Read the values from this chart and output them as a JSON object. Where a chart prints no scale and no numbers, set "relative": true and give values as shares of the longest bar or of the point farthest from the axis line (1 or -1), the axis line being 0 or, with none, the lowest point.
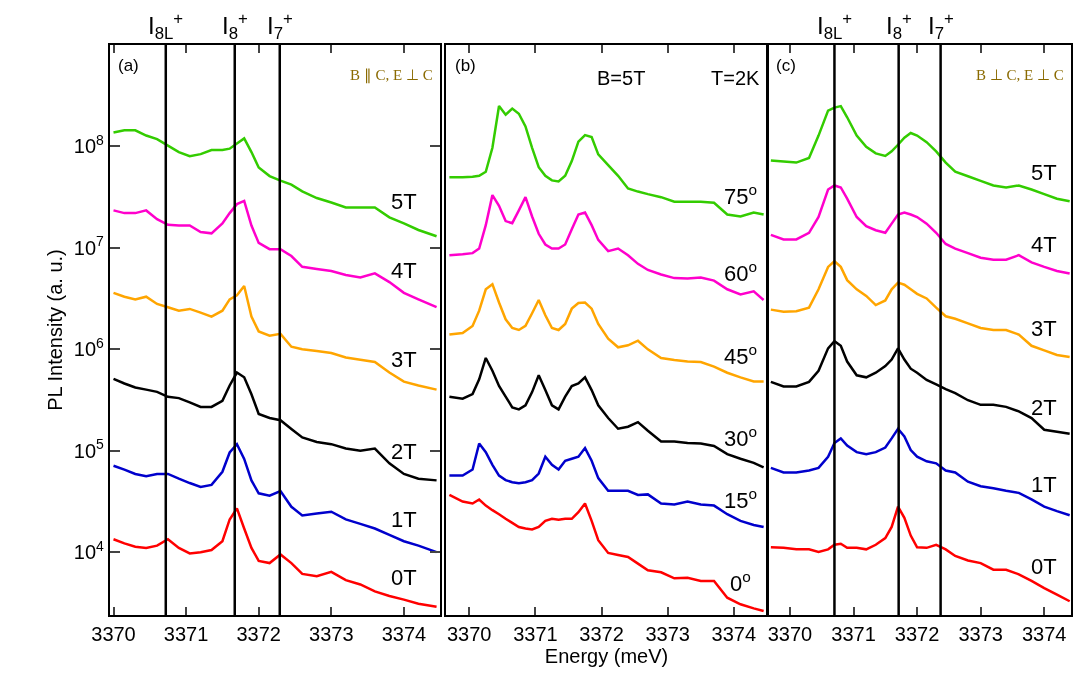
{
  "chart_data": [
    {
      "type": "line",
      "ylabel": "PL Intensity (a. u.)",
      "log": true,
      "xlim": [
        3369.95,
        3374.5
      ],
      "xticks": [
        3370,
        3371,
        3372,
        3373,
        3374
      ],
      "ylim": [
        2400,
        1000000000.0
      ],
      "yticks": [
        {
          "value": 10000,
          "label": "10$^{4}$"
        },
        {
          "value": 100000,
          "label": "10$^{5}$"
        },
        {
          "value": 1000000,
          "label": "10$^{6}$"
        },
        {
          "value": 10000000,
          "label": "10$^{7}$"
        },
        {
          "value": 100000000,
          "label": "10$^{8}$"
        }
      ],
      "x": [
        3370.0,
        3370.15,
        3370.3,
        3370.45,
        3370.6,
        3370.75,
        3370.9,
        3371.05,
        3371.2,
        3371.35,
        3371.5,
        3371.6,
        3371.7,
        3371.8,
        3371.9,
        3372.0,
        3372.15,
        3372.3,
        3372.45,
        3372.6,
        3372.8,
        3373.0,
        3373.2,
        3373.4,
        3373.6,
        3373.8,
        3374.0,
        3374.2,
        3374.45
      ],
      "series": [
        {
          "name": "5T",
          "color": "#33cc00",
          "values": [
            137000000.0,
            144000000.0,
            144000000.0,
            128000000.0,
            118000000.0,
            102000000.0,
            88000000.0,
            80000000.0,
            84000000.0,
            92000000.0,
            92000000.0,
            95000000.0,
            107000000.0,
            120000000.0,
            88000000.0,
            62000000.0,
            51000000.0,
            46000000.0,
            42000000.0,
            36000000.0,
            31000000.0,
            28000000.0,
            25000000.0,
            25000000.0,
            25000000.0,
            20000000.0,
            17400000.0,
            15000000.0,
            13000000.0
          ]
        },
        {
          "name": "4T",
          "color": "#ff00cc",
          "values": [
            23400000.0,
            22000000.0,
            22000000.0,
            23400000.0,
            19200000.0,
            16900000.0,
            16600000.0,
            16600000.0,
            14300000.0,
            13900000.0,
            17400000.0,
            22000000.0,
            27000000.0,
            29000000.0,
            16600000.0,
            11200000.0,
            9700000.0,
            9700000.0,
            8300000.0,
            6500000.0,
            6200000.0,
            5900000.0,
            5400000.0,
            5100000.0,
            5600000.0,
            4600000.0,
            3600000.0,
            3100000.0,
            2600000.0
          ]
        },
        {
          "name": "3T",
          "color": "#ffa500",
          "values": [
            3600000.0,
            3300000.0,
            3100000.0,
            3300000.0,
            2800000.0,
            2600000.0,
            2400000.0,
            2500000.0,
            2300000.0,
            2100000.0,
            2400000.0,
            3100000.0,
            3400000.0,
            4200000.0,
            2100000.0,
            1500000.0,
            1360000.0,
            1420000.0,
            1060000.0,
            1000000.0,
            960000.0,
            920000.0,
            830000.0,
            790000.0,
            750000.0,
            590000.0,
            480000.0,
            440000.0,
            400000.0
          ]
        },
        {
          "name": "2T",
          "color": "#000000",
          "values": [
            510000.0,
            460000.0,
            420000.0,
            400000.0,
            380000.0,
            340000.0,
            330000.0,
            300000.0,
            270000.0,
            270000.0,
            310000.0,
            440000.0,
            590000.0,
            530000.0,
            360000.0,
            230000.0,
            210000.0,
            200000.0,
            164000.0,
            135000.0,
            122000.0,
            116000.0,
            105000.0,
            100000.0,
            105000.0,
            75000.0,
            59000.0,
            53000.0,
            51000.0
          ]
        },
        {
          "name": "1T",
          "color": "#0000cc",
          "values": [
            71000.0,
            65000.0,
            59000.0,
            56000.0,
            59000.0,
            59000.0,
            53000.0,
            48000.0,
            44000.0,
            46000.0,
            62000.0,
            96000.0,
            116000.0,
            83000.0,
            51000.0,
            38000.0,
            36000.0,
            40000.0,
            28000.0,
            23000.0,
            24000.0,
            25000.0,
            21000.0,
            19000.0,
            17100.0,
            14800.0,
            12800.0,
            11600.0,
            10000.0
          ]
        },
        {
          "name": "0T",
          "color": "#ff0000",
          "values": [
            13400.0,
            12200.0,
            11300.0,
            11000.0,
            11600.0,
            13400.0,
            11000.0,
            9700.0,
            10000.0,
            10500.0,
            12800.0,
            21000.0,
            27000.0,
            17100.0,
            11000.0,
            8200.0,
            7800.0,
            9500.0,
            7800.0,
            6100.0,
            5800.0,
            6400.0,
            5300.0,
            4800.0,
            4100.0,
            3700.0,
            3400.0,
            3100.0,
            2900.0
          ]
        }
      ],
      "ref_lines": [
        {
          "axis": "x",
          "value": 3370.72,
          "label": "I$_{8L}$$^{+}$"
        },
        {
          "axis": "x",
          "value": 3371.67,
          "label": "I$_{8}$$^{+}$"
        },
        {
          "axis": "x",
          "value": 3372.29,
          "label": "I$_{7}$$^{+}$"
        }
      ],
      "annotations": [
        "(a)",
        "B ∥ C, E ⊥ C"
      ]
    },
    {
      "type": "line",
      "relative": true,
      "xlabel": "Energy (meV)",
      "xlim": [
        3369.65,
        3374.5
      ],
      "xticks": [
        3370,
        3371,
        3372,
        3373,
        3374
      ],
      "x": [
        3369.7,
        3369.9,
        3370.05,
        3370.15,
        3370.25,
        3370.35,
        3370.45,
        3370.55,
        3370.65,
        3370.75,
        3370.85,
        3370.95,
        3371.05,
        3371.15,
        3371.25,
        3371.35,
        3371.45,
        3371.55,
        3371.65,
        3371.75,
        3371.85,
        3371.95,
        3372.1,
        3372.25,
        3372.4,
        3372.55,
        3372.7,
        3372.9,
        3373.1,
        3373.3,
        3373.5,
        3373.7,
        3373.9,
        3374.1,
        3374.3,
        3374.45
      ],
      "series": [
        {
          "name": "75$^{o}$",
          "color": "#33cc00",
          "values": [
            0.86,
            0.86,
            0.861,
            0.863,
            0.871,
            0.918,
            1.0,
            0.983,
            0.995,
            0.985,
            0.96,
            0.918,
            0.88,
            0.863,
            0.854,
            0.852,
            0.863,
            0.892,
            0.93,
            0.943,
            0.939,
            0.905,
            0.884,
            0.863,
            0.838,
            0.832,
            0.827,
            0.821,
            0.812,
            0.812,
            0.812,
            0.81,
            0.787,
            0.783,
            0.791,
            0.787
          ]
        },
        {
          "name": "60$^{o}$",
          "color": "#ff00cc",
          "values": [
            0.707,
            0.709,
            0.711,
            0.72,
            0.766,
            0.825,
            0.804,
            0.774,
            0.77,
            0.795,
            0.821,
            0.783,
            0.749,
            0.728,
            0.72,
            0.72,
            0.728,
            0.758,
            0.787,
            0.791,
            0.766,
            0.737,
            0.715,
            0.72,
            0.707,
            0.69,
            0.678,
            0.669,
            0.662,
            0.661,
            0.663,
            0.657,
            0.64,
            0.63,
            0.636,
            0.619
          ]
        },
        {
          "name": "45$^{o}$",
          "color": "#ffa500",
          "values": [
            0.551,
            0.554,
            0.568,
            0.598,
            0.64,
            0.65,
            0.614,
            0.581,
            0.564,
            0.56,
            0.568,
            0.593,
            0.619,
            0.589,
            0.564,
            0.56,
            0.572,
            0.602,
            0.613,
            0.614,
            0.602,
            0.572,
            0.543,
            0.526,
            0.53,
            0.539,
            0.522,
            0.505,
            0.501,
            0.498,
            0.497,
            0.488,
            0.476,
            0.467,
            0.459,
            0.459
          ]
        },
        {
          "name": "30$^{o}$",
          "color": "#000000",
          "values": [
            0.429,
            0.425,
            0.434,
            0.463,
            0.505,
            0.48,
            0.45,
            0.429,
            0.408,
            0.404,
            0.412,
            0.438,
            0.471,
            0.442,
            0.412,
            0.404,
            0.429,
            0.45,
            0.455,
            0.467,
            0.442,
            0.412,
            0.387,
            0.366,
            0.37,
            0.379,
            0.362,
            0.341,
            0.341,
            0.338,
            0.337,
            0.332,
            0.316,
            0.307,
            0.299,
            0.29
          ]
        },
        {
          "name": "15$^{o}$",
          "color": "#0000cc",
          "values": [
            0.274,
            0.274,
            0.286,
            0.337,
            0.32,
            0.295,
            0.274,
            0.265,
            0.261,
            0.259,
            0.261,
            0.265,
            0.278,
            0.311,
            0.295,
            0.286,
            0.303,
            0.307,
            0.311,
            0.328,
            0.303,
            0.269,
            0.244,
            0.244,
            0.244,
            0.236,
            0.237,
            0.219,
            0.217,
            0.223,
            0.217,
            0.215,
            0.198,
            0.185,
            0.177,
            0.173
          ]
        },
        {
          "name": "0$^{o}$",
          "color": "#ff0000",
          "values": [
            0.236,
            0.223,
            0.219,
            0.227,
            0.215,
            0.206,
            0.198,
            0.189,
            0.181,
            0.173,
            0.17,
            0.168,
            0.173,
            0.185,
            0.189,
            0.187,
            0.189,
            0.189,
            0.202,
            0.219,
            0.185,
            0.147,
            0.122,
            0.118,
            0.114,
            0.101,
            0.088,
            0.084,
            0.072,
            0.073,
            0.067,
            0.067,
            0.034,
            0.021,
            0.013,
            0.008
          ]
        }
      ],
      "annotations": [
        "(b)",
        "B=5T",
        "T=2K"
      ]
    },
    {
      "type": "line",
      "relative": true,
      "xlim": [
        3369.65,
        3374.42
      ],
      "xticks": [
        3370,
        3371,
        3372,
        3373,
        3374
      ],
      "x": [
        3369.7,
        3369.9,
        3370.1,
        3370.3,
        3370.45,
        3370.6,
        3370.7,
        3370.8,
        3370.9,
        3371.05,
        3371.2,
        3371.35,
        3371.5,
        3371.6,
        3371.7,
        3371.8,
        3371.9,
        3372.0,
        3372.15,
        3372.3,
        3372.45,
        3372.6,
        3372.8,
        3373.0,
        3373.2,
        3373.4,
        3373.6,
        3373.8,
        3374.0,
        3374.2,
        3374.4
      ],
      "series": [
        {
          "name": "5T",
          "color": "#33cc00",
          "values": [
            0.893,
            0.891,
            0.889,
            0.898,
            0.942,
            0.991,
            0.997,
            1.0,
            0.978,
            0.942,
            0.92,
            0.907,
            0.902,
            0.911,
            0.924,
            0.938,
            0.947,
            0.942,
            0.929,
            0.911,
            0.889,
            0.871,
            0.862,
            0.853,
            0.844,
            0.84,
            0.844,
            0.836,
            0.827,
            0.818,
            0.813
          ]
        },
        {
          "name": "4T",
          "color": "#ff00cc",
          "values": [
            0.747,
            0.738,
            0.738,
            0.751,
            0.782,
            0.836,
            0.844,
            0.84,
            0.818,
            0.782,
            0.764,
            0.756,
            0.751,
            0.769,
            0.787,
            0.791,
            0.787,
            0.782,
            0.769,
            0.751,
            0.729,
            0.72,
            0.711,
            0.702,
            0.698,
            0.698,
            0.707,
            0.693,
            0.684,
            0.676,
            0.671
          ]
        },
        {
          "name": "3T",
          "color": "#ffa500",
          "values": [
            0.6,
            0.596,
            0.597,
            0.604,
            0.64,
            0.684,
            0.695,
            0.684,
            0.658,
            0.64,
            0.627,
            0.609,
            0.618,
            0.64,
            0.653,
            0.649,
            0.64,
            0.631,
            0.622,
            0.604,
            0.587,
            0.582,
            0.573,
            0.564,
            0.56,
            0.56,
            0.551,
            0.529,
            0.52,
            0.511,
            0.507
          ]
        },
        {
          "name": "2T",
          "color": "#000000",
          "values": [
            0.458,
            0.449,
            0.449,
            0.458,
            0.48,
            0.524,
            0.538,
            0.529,
            0.498,
            0.471,
            0.467,
            0.476,
            0.489,
            0.502,
            0.524,
            0.502,
            0.484,
            0.476,
            0.462,
            0.453,
            0.444,
            0.436,
            0.422,
            0.413,
            0.413,
            0.409,
            0.4,
            0.387,
            0.364,
            0.36,
            0.356
          ]
        },
        {
          "name": "1T",
          "color": "#0000cc",
          "values": [
            0.289,
            0.28,
            0.28,
            0.284,
            0.289,
            0.311,
            0.338,
            0.347,
            0.333,
            0.32,
            0.316,
            0.32,
            0.329,
            0.347,
            0.366,
            0.351,
            0.324,
            0.311,
            0.302,
            0.298,
            0.284,
            0.28,
            0.262,
            0.253,
            0.249,
            0.244,
            0.24,
            0.227,
            0.213,
            0.204,
            0.196
          ]
        },
        {
          "name": "0T",
          "color": "#ff0000",
          "values": [
            0.133,
            0.132,
            0.129,
            0.129,
            0.124,
            0.129,
            0.138,
            0.14,
            0.132,
            0.132,
            0.129,
            0.138,
            0.151,
            0.173,
            0.213,
            0.191,
            0.156,
            0.133,
            0.132,
            0.138,
            0.129,
            0.116,
            0.107,
            0.102,
            0.089,
            0.089,
            0.08,
            0.067,
            0.053,
            0.04,
            0.027
          ]
        }
      ],
      "ref_lines": [
        {
          "axis": "x",
          "value": 3370.7,
          "label": "I$_{8L}$$^{+}$"
        },
        {
          "axis": "x",
          "value": 3371.71,
          "label": "I$_{8}$$^{+}$"
        },
        {
          "axis": "x",
          "value": 3372.37,
          "label": "I$_{7}$$^{+}$"
        }
      ],
      "annotations": [
        "(c)",
        "B ⊥ C, E ⊥ C"
      ]
    }
  ]
}
